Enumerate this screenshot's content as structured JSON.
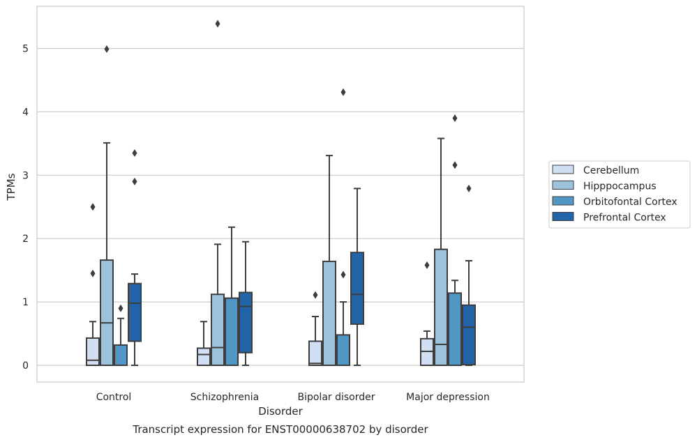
{
  "chart_data": {
    "type": "box",
    "title": "",
    "caption": "Transcript expression for ENST00000638702 by disorder",
    "xlabel": "Disorder",
    "ylabel": "TPMs",
    "ylim": [
      -0.26,
      5.66
    ],
    "yticks": [
      0,
      1,
      2,
      3,
      4,
      5
    ],
    "grid": true,
    "legend_position": "right",
    "categories": [
      "Control",
      "Schizophrenia",
      "Bipolar disorder",
      "Major depression"
    ],
    "series": [
      {
        "name": "Cerebellum",
        "color": "#d0e0f2",
        "boxes": [
          {
            "whisker_low": 0,
            "q1": 0,
            "median": 0.08,
            "q3": 0.43,
            "whisker_high": 0.69,
            "outliers": [
              1.45,
              2.5
            ]
          },
          {
            "whisker_low": 0,
            "q1": 0,
            "median": 0.17,
            "q3": 0.27,
            "whisker_high": 0.69,
            "outliers": []
          },
          {
            "whisker_low": 0,
            "q1": 0,
            "median": 0.03,
            "q3": 0.38,
            "whisker_high": 0.77,
            "outliers": [
              1.11
            ]
          },
          {
            "whisker_low": 0,
            "q1": 0,
            "median": 0.22,
            "q3": 0.42,
            "whisker_high": 0.54,
            "outliers": [
              1.58
            ]
          }
        ]
      },
      {
        "name": "Hipppocampus",
        "color": "#9dc3dc",
        "boxes": [
          {
            "whisker_low": 0,
            "q1": 0,
            "median": 0.67,
            "q3": 1.66,
            "whisker_high": 3.51,
            "outliers": [
              4.99
            ]
          },
          {
            "whisker_low": 0,
            "q1": 0,
            "median": 0.28,
            "q3": 1.12,
            "whisker_high": 1.91,
            "outliers": [
              5.39
            ]
          },
          {
            "whisker_low": 0,
            "q1": 0,
            "median": 0,
            "q3": 1.64,
            "whisker_high": 3.31,
            "outliers": []
          },
          {
            "whisker_low": 0,
            "q1": 0,
            "median": 0.33,
            "q3": 1.83,
            "whisker_high": 3.58,
            "outliers": []
          }
        ]
      },
      {
        "name": "Orbitofontal Cortex",
        "color": "#5296c5",
        "boxes": [
          {
            "whisker_low": 0,
            "q1": 0,
            "median": 0,
            "q3": 0.32,
            "whisker_high": 0.74,
            "outliers": [
              0.9
            ]
          },
          {
            "whisker_low": 0,
            "q1": 0,
            "median": 0,
            "q3": 1.06,
            "whisker_high": 2.18,
            "outliers": []
          },
          {
            "whisker_low": 0,
            "q1": 0,
            "median": 0,
            "q3": 0.48,
            "whisker_high": 1.0,
            "outliers": [
              1.43,
              4.31
            ]
          },
          {
            "whisker_low": 0,
            "q1": 0,
            "median": 0,
            "q3": 1.14,
            "whisker_high": 1.34,
            "outliers": [
              3.16,
              3.9
            ]
          }
        ]
      },
      {
        "name": "Prefrontal Cortex",
        "color": "#2364a8",
        "boxes": [
          {
            "whisker_low": 0,
            "q1": 0.38,
            "median": 0.98,
            "q3": 1.29,
            "whisker_high": 1.44,
            "outliers": [
              2.9,
              3.35
            ]
          },
          {
            "whisker_low": 0,
            "q1": 0.2,
            "median": 0.93,
            "q3": 1.15,
            "whisker_high": 1.95,
            "outliers": []
          },
          {
            "whisker_low": 0,
            "q1": 0.65,
            "median": 1.12,
            "q3": 1.78,
            "whisker_high": 2.79,
            "outliers": []
          },
          {
            "whisker_low": 0,
            "q1": 0.01,
            "median": 0.6,
            "q3": 0.95,
            "whisker_high": 1.65,
            "outliers": [
              2.79
            ]
          }
        ]
      }
    ]
  }
}
